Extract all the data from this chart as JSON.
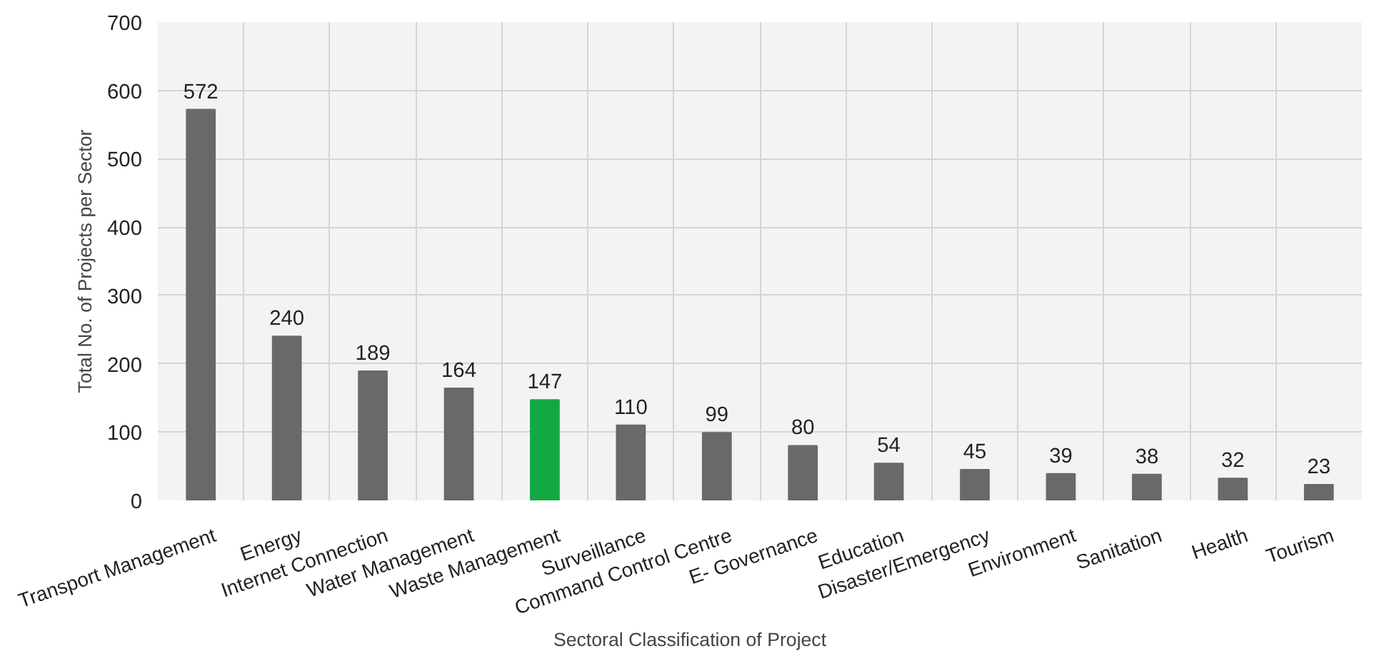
{
  "chart_data": {
    "type": "bar",
    "xlabel": "Sectoral Classification of Project",
    "ylabel": "Total No. of Projects per Sector",
    "categories": [
      "Transport Management",
      "Energy",
      "Internet Connection",
      "Water Management",
      "Waste Management",
      "Surveillance",
      "Command Control Centre",
      "E- Governance",
      "Education",
      "Disaster/Emergency",
      "Environment",
      "Sanitation",
      "Health",
      "Tourism"
    ],
    "values": [
      572,
      240,
      189,
      164,
      147,
      110,
      99,
      80,
      54,
      45,
      39,
      38,
      32,
      23
    ],
    "colors": [
      "#6b6869",
      "#6b6869",
      "#6b6869",
      "#6b6869",
      "#12a943",
      "#6b6869",
      "#6b6869",
      "#6b6869",
      "#6b6869",
      "#6b6869",
      "#6b6869",
      "#6b6869",
      "#6b6869",
      "#6b6869"
    ],
    "ylim": [
      0,
      700
    ],
    "yticks": [
      0,
      100,
      200,
      300,
      400,
      500,
      600,
      700
    ],
    "grid": true,
    "data_labels": true
  }
}
